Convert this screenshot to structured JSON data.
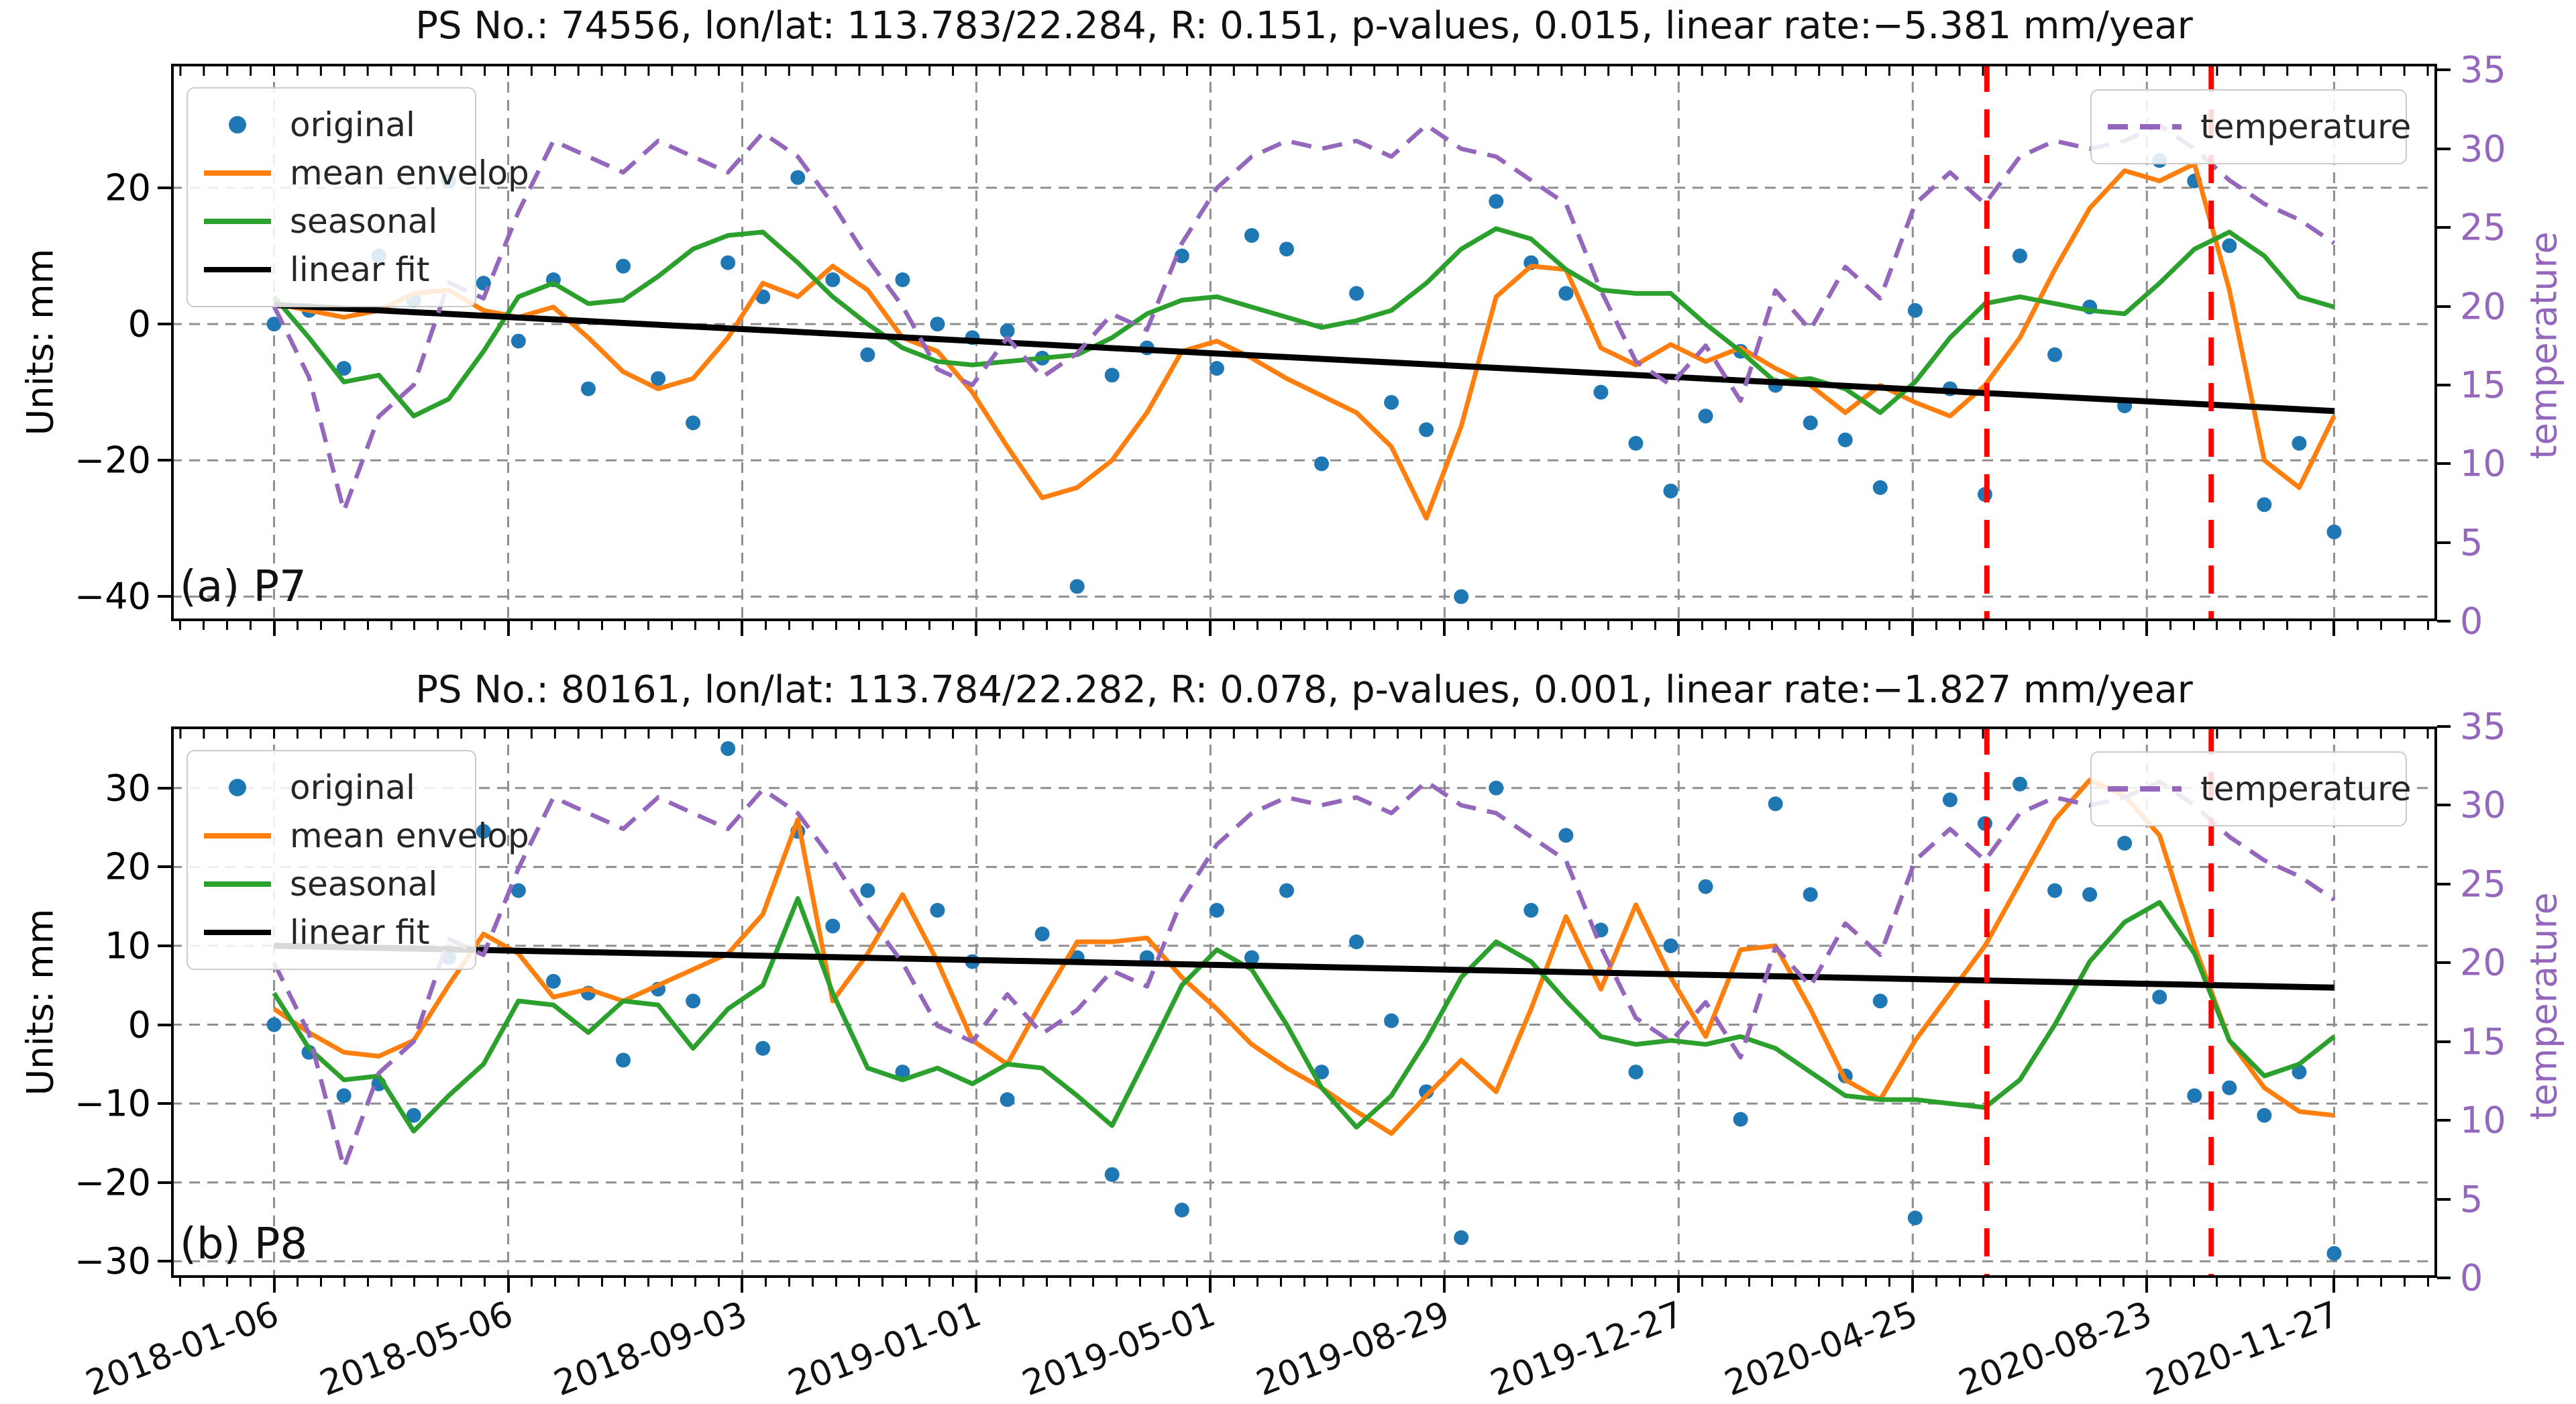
{
  "colors": {
    "original": "#1f77b4",
    "mean_envelop": "#ff7f0e",
    "seasonal": "#2ca02c",
    "linear_fit": "#000000",
    "temperature": "#9467bd",
    "red_marker": "#ff0000",
    "grid": "#8f8f8f"
  },
  "legend": {
    "entries": [
      "original",
      "mean envelop",
      "seasonal",
      "linear fit"
    ],
    "temperature_label": "temperature"
  },
  "x_axis": {
    "tick_days": [
      0,
      120,
      240,
      360,
      480,
      600,
      720,
      840,
      960,
      1056
    ],
    "tick_labels": [
      "2018-01-06",
      "2018-05-06",
      "2018-09-03",
      "2019-01-01",
      "2019-05-01",
      "2019-08-29",
      "2019-12-27",
      "2020-04-25",
      "2020-08-23",
      "2020-11-27"
    ],
    "minor_step_days": 12
  },
  "chart_data": [
    {
      "type": "line+scatter",
      "panel_label": "(a) P7",
      "title": "PS No.: 74556, lon/lat: 113.783/22.284, R: 0.151, p-values, 0.015, linear rate:−5.381 mm/year",
      "ylabel": "Units: mm",
      "right_ylabel": "temperature",
      "ylim": [
        -43.6,
        38.2
      ],
      "yticks": [
        20,
        0,
        -20,
        -40
      ],
      "ytick_labels": [
        "20",
        "0",
        "−20",
        "−40"
      ],
      "right_ylim": [
        0,
        35.4
      ],
      "right_yticks": [
        35,
        30,
        25,
        20,
        15,
        10,
        5,
        0
      ],
      "xlim_days": [
        -52.8,
        1108.8
      ],
      "span_days": 1056,
      "red_dashed_lines_days": [
        878,
        993
      ],
      "linear_fit": {
        "start_mm": 2.8,
        "end_mm": -12.76,
        "rate_mm_per_year": -5.381
      },
      "series": {
        "original": [
          0,
          2,
          -6.5,
          10,
          3.5,
          21,
          6,
          -2.5,
          6.5,
          -9.5,
          8.5,
          -8,
          -14.5,
          9,
          4,
          21.5,
          6.5,
          -4.5,
          6.5,
          0,
          -2,
          -1,
          -5,
          -38.5,
          -7.5,
          -3.5,
          10,
          -6.5,
          13,
          11,
          -20.5,
          4.5,
          -11.5,
          -15.5,
          -40,
          18,
          9,
          4.5,
          -10,
          -17.5,
          -24.5,
          -13.5,
          -4,
          -9,
          -14.5,
          -17,
          -24,
          2,
          -9.5,
          -25,
          10,
          -4.5,
          2.5,
          -12,
          24,
          21,
          11.5,
          -26.5,
          -17.5,
          -30.5
        ],
        "mean_envelop": [
          3,
          2,
          1,
          2,
          4.5,
          5,
          2,
          1,
          2.5,
          -2,
          -7,
          -9.5,
          -8,
          -2,
          6,
          4,
          8.5,
          5,
          -2,
          -4,
          -10,
          -18,
          -25.5,
          -24,
          -20,
          -13,
          -4,
          -2.5,
          -5,
          -8,
          -10.5,
          -13,
          -18,
          -28.5,
          -15,
          4,
          8.5,
          8,
          -3.5,
          -6,
          -3,
          -5.5,
          -3.5,
          -6.5,
          -9,
          -13,
          -9,
          -11.5,
          -13.5,
          -9,
          -2,
          8,
          17,
          22.5,
          21,
          23.5,
          5,
          -20,
          -24,
          -13.5
        ],
        "seasonal": [
          4,
          -2,
          -8.5,
          -7.5,
          -13.5,
          -11,
          -4,
          4,
          6,
          3,
          3.5,
          7,
          11,
          13,
          13.5,
          9,
          4,
          0,
          -3.5,
          -5.5,
          -6,
          -5.5,
          -5,
          -4.5,
          -2,
          1.5,
          3.5,
          4,
          2.5,
          1,
          -0.5,
          0.5,
          2,
          6,
          11,
          14,
          12.5,
          8,
          5,
          4.5,
          4.5,
          0,
          -4,
          -8.5,
          -8,
          -9.5,
          -13,
          -8.5,
          -2,
          3,
          4,
          3,
          2,
          1.5,
          6,
          11,
          13.5,
          10,
          4,
          2.5
        ],
        "temperature": [
          20,
          15.5,
          7,
          13,
          15,
          21.5,
          20.5,
          26,
          30.5,
          29.5,
          28.5,
          30.5,
          29.5,
          28.5,
          31,
          29.5,
          26.5,
          23,
          20,
          16,
          15,
          18,
          15.5,
          17,
          19.5,
          18.5,
          24,
          27.5,
          29.5,
          30.5,
          30,
          30.5,
          29.5,
          31.5,
          30,
          29.5,
          28,
          26.5,
          21,
          16.5,
          15,
          17.5,
          14,
          21,
          18.5,
          22.5,
          20.5,
          26.5,
          28.5,
          26.5,
          29.5,
          30.5,
          30,
          30.5,
          31.5,
          30,
          28,
          26.5,
          25.5,
          24
        ]
      }
    },
    {
      "type": "line+scatter",
      "panel_label": "(b) P8",
      "title": "PS No.: 80161, lon/lat: 113.784/22.282, R: 0.078, p-values, 0.001, linear rate:−1.827 mm/year",
      "ylabel": "Units: mm",
      "right_ylabel": "temperature",
      "ylim": [
        -32.1,
        37.8
      ],
      "yticks": [
        30,
        20,
        10,
        0,
        -10,
        -20,
        -30
      ],
      "ytick_labels": [
        "30",
        "20",
        "10",
        "0",
        "−10",
        "−20",
        "−30"
      ],
      "right_ylim": [
        0,
        35.0
      ],
      "right_yticks": [
        35,
        30,
        25,
        20,
        15,
        10,
        5,
        0
      ],
      "xlim_days": [
        -52.8,
        1108.8
      ],
      "span_days": 1056,
      "red_dashed_lines_days": [
        878,
        993
      ],
      "linear_fit": {
        "start_mm": 10.0,
        "end_mm": 4.7,
        "rate_mm_per_year": -1.827
      },
      "series": {
        "original": [
          0,
          -3.5,
          -9,
          -7.5,
          -11.5,
          8.5,
          24.5,
          17,
          5.5,
          4,
          -4.5,
          4.5,
          3,
          35,
          -3,
          24.5,
          12.5,
          17,
          -6,
          14.5,
          8,
          -9.5,
          11.5,
          8.5,
          -19,
          8.5,
          -23.5,
          14.5,
          8.5,
          17,
          -6,
          10.5,
          0.5,
          -8.5,
          -27,
          30,
          14.5,
          24,
          12,
          -6,
          10,
          17.5,
          -12,
          28,
          16.5,
          -6.5,
          3,
          -24.5,
          28.5,
          25.5,
          30.5,
          17,
          16.5,
          23,
          3.5,
          -9,
          -8,
          -11.5,
          -6,
          -29
        ],
        "mean_envelop": [
          2,
          -1,
          -3.5,
          -4,
          -2,
          5,
          11.5,
          9,
          3.5,
          4.5,
          3,
          5,
          7,
          9,
          14,
          26,
          3,
          9,
          16.5,
          8,
          -2,
          -5,
          3,
          10.5,
          10.5,
          11,
          6,
          2,
          -2.5,
          -5.5,
          -8,
          -11,
          -13.8,
          -9,
          -4.5,
          -8.5,
          2,
          13.7,
          4.5,
          15.2,
          6,
          -1.5,
          9.5,
          10,
          2,
          -7,
          -9.5,
          -2,
          4,
          10,
          18,
          26,
          31,
          29,
          24,
          10,
          -2,
          -8,
          -11,
          -11.5
        ],
        "seasonal": [
          4,
          -3,
          -7,
          -6.5,
          -13.5,
          -9,
          -5,
          3,
          2.5,
          -1,
          3,
          2.5,
          -3,
          2,
          5,
          16,
          4,
          -5.5,
          -7,
          -5.5,
          -7.5,
          -5,
          -5.5,
          -9,
          -12.8,
          -4,
          5,
          9.5,
          7,
          0,
          -8,
          -13,
          -9,
          -2,
          6,
          10.5,
          8,
          3,
          -1.5,
          -2.5,
          -2,
          -2.5,
          -1.5,
          -3,
          -6,
          -9,
          -9.5,
          -9.5,
          -10,
          -10.5,
          -7,
          0,
          8,
          13,
          15.5,
          9,
          -2,
          -6.5,
          -5,
          -1.5
        ],
        "temperature": [
          20,
          15.5,
          7,
          13,
          15,
          21.5,
          20.5,
          26,
          30.5,
          29.5,
          28.5,
          30.5,
          29.5,
          28.5,
          31,
          29.5,
          26.5,
          23,
          20,
          16,
          15,
          18,
          15.5,
          17,
          19.5,
          18.5,
          24,
          27.5,
          29.5,
          30.5,
          30,
          30.5,
          29.5,
          31.5,
          30,
          29.5,
          28,
          26.5,
          21,
          16.5,
          15,
          17.5,
          14,
          21,
          18.5,
          22.5,
          20.5,
          26.5,
          28.5,
          26.5,
          29.5,
          30.5,
          30,
          30.5,
          31.5,
          30,
          28,
          26.5,
          25.5,
          24
        ]
      }
    }
  ]
}
